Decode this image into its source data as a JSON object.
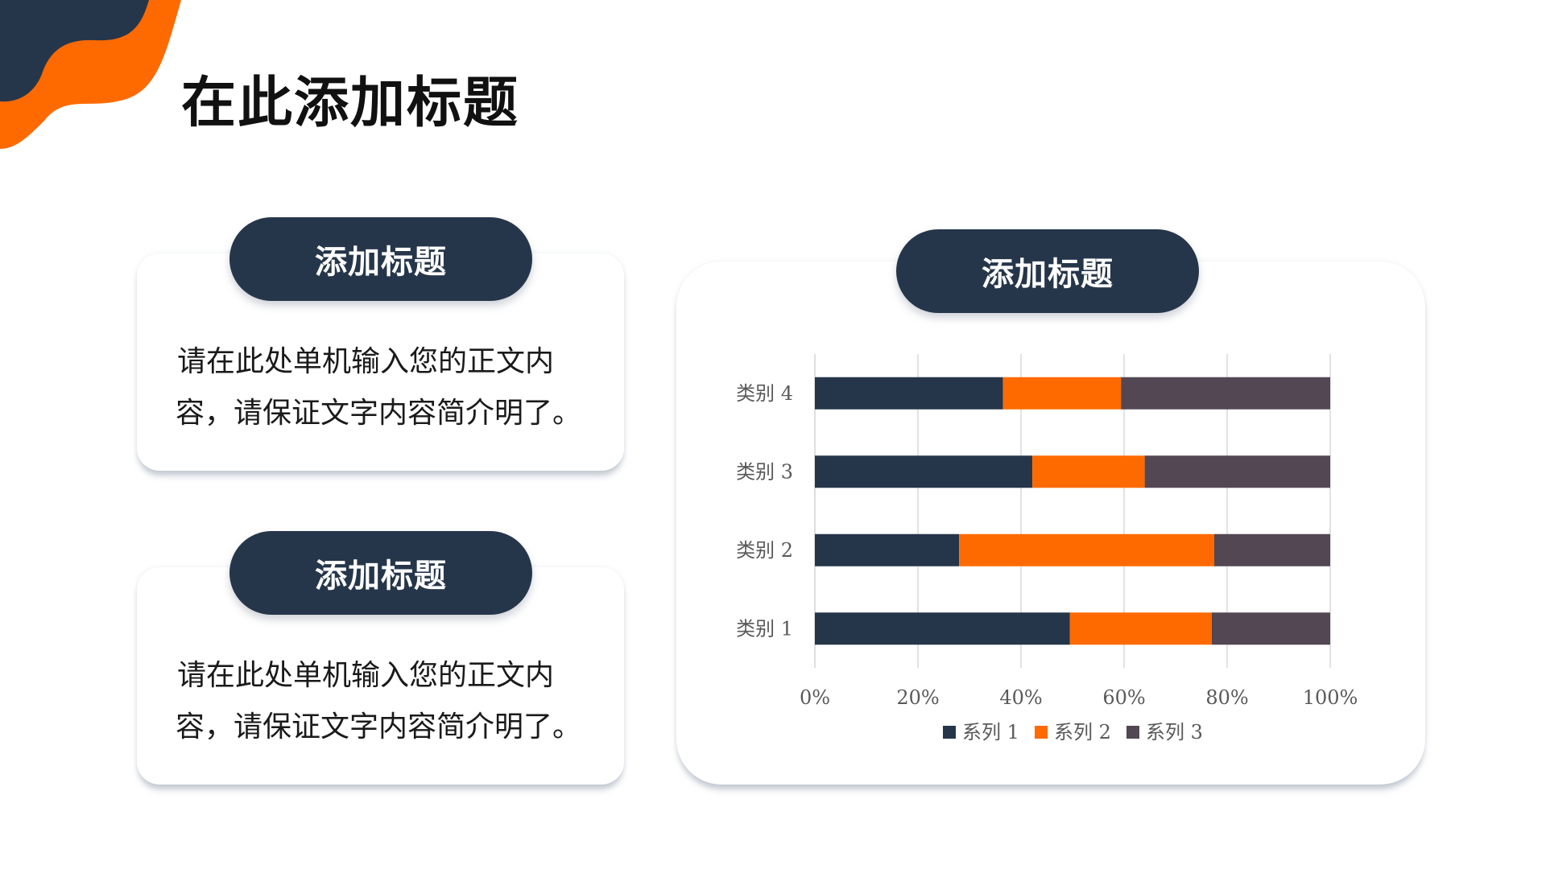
{
  "page_title": "在此添加标题",
  "cards": [
    {
      "heading": "添加标题",
      "body": "请在此处单机输入您的正文内容，请保证文字内容简介明了。"
    },
    {
      "heading": "添加标题",
      "body": "请在此处单机输入您的正文内容，请保证文字内容简介明了。"
    }
  ],
  "chart_card": {
    "heading": "添加标题"
  },
  "colors": {
    "navy": "#26364a",
    "orange": "#ff6a00",
    "gray_purple": "#534753"
  },
  "chart_data": {
    "type": "bar",
    "orientation": "horizontal",
    "stacked": "percent",
    "categories": [
      "类别 1",
      "类别 2",
      "类别 3",
      "类别 4"
    ],
    "series": [
      {
        "name": "系列 1",
        "values": [
          49.5,
          28,
          42.2,
          36.5
        ],
        "color": "#26364a"
      },
      {
        "name": "系列 2",
        "values": [
          27.5,
          49.5,
          21.8,
          22.9
        ],
        "color": "#ff6a00"
      },
      {
        "name": "系列 3",
        "values": [
          23,
          22.5,
          36,
          40.6
        ],
        "color": "#534753"
      }
    ],
    "x_ticks": [
      "0%",
      "20%",
      "40%",
      "60%",
      "80%",
      "100%"
    ],
    "xlim": [
      0,
      100
    ],
    "grid": true,
    "legend": "bottom"
  }
}
